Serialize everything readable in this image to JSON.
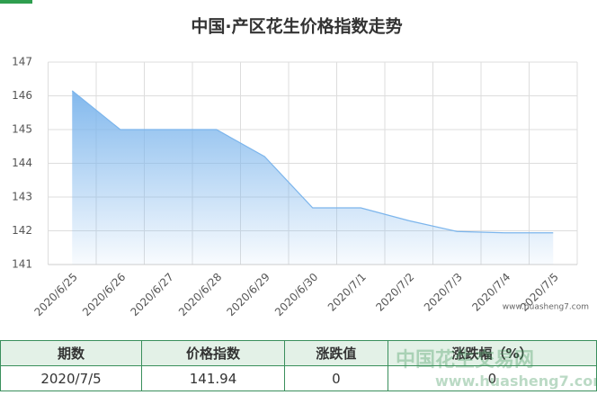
{
  "chart_data": {
    "type": "area",
    "title": "中国·产区花生价格指数走势",
    "categories": [
      "2020/6/25",
      "2020/6/26",
      "2020/6/27",
      "2020/6/28",
      "2020/6/29",
      "2020/6/30",
      "2020/7/1",
      "2020/7/2",
      "2020/7/3",
      "2020/7/4",
      "2020/7/5"
    ],
    "values": [
      146.15,
      145.0,
      145.0,
      145.0,
      144.2,
      142.68,
      142.68,
      142.3,
      141.98,
      141.94,
      141.94
    ],
    "color": "#7cb5ec",
    "ylim": [
      141,
      147
    ],
    "yticks": [
      141,
      142,
      143,
      144,
      145,
      146,
      147
    ],
    "grid": true
  },
  "source": "www.huasheng7.com",
  "watermark": {
    "name": "中国花生交易网",
    "url": "www.huasheng7.com"
  },
  "table": {
    "headers": [
      "期数",
      "价格指数",
      "涨跌值",
      "涨跌幅（%）"
    ],
    "rows": [
      [
        "2020/7/5",
        "141.94",
        "0",
        "0"
      ]
    ]
  }
}
